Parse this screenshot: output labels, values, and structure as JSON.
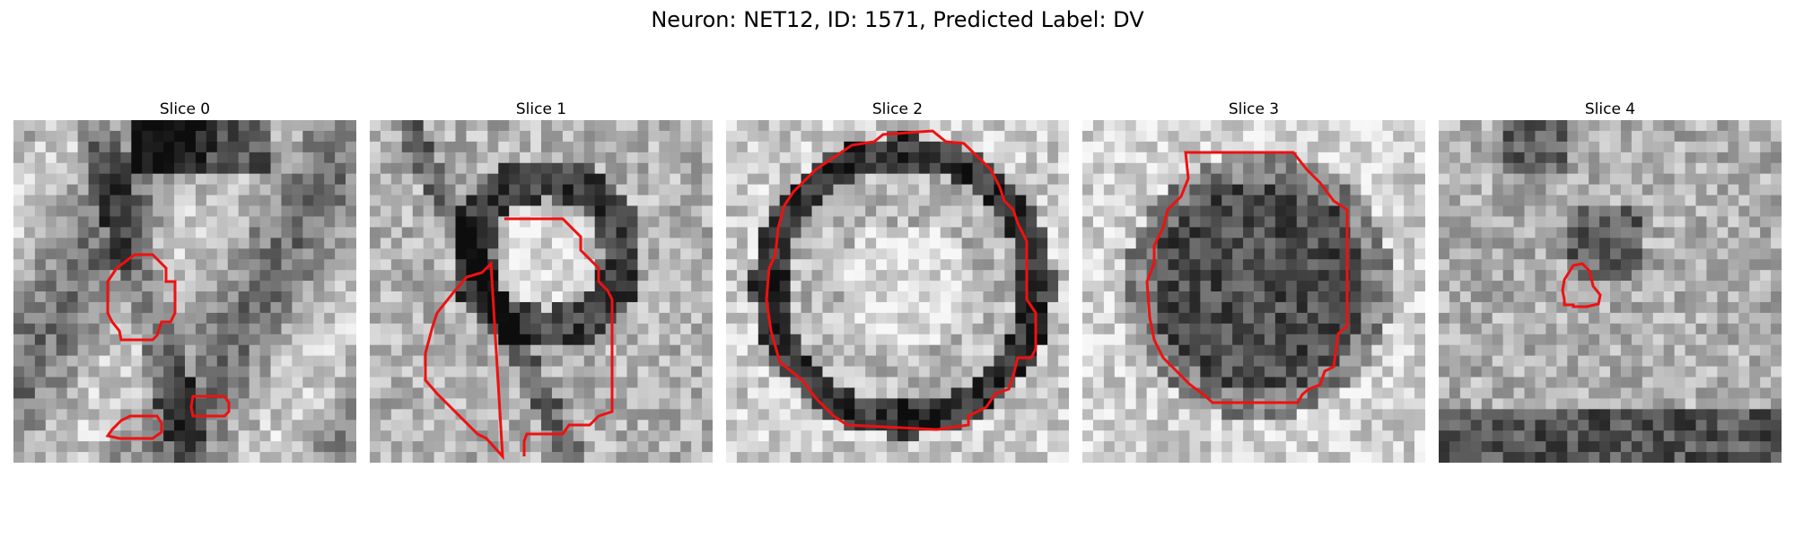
{
  "figure": {
    "title": "Neuron: NET12, ID: 1571, Predicted Label: DV"
  },
  "panels": [
    {
      "title": "Slice 0",
      "contour_color": "#ee1111"
    },
    {
      "title": "Slice 1",
      "contour_color": "#ee1111"
    },
    {
      "title": "Slice 2",
      "contour_color": "#ee1111"
    },
    {
      "title": "Slice 3",
      "contour_color": "#ee1111"
    },
    {
      "title": "Slice 4",
      "contour_color": "#ee1111"
    }
  ]
}
